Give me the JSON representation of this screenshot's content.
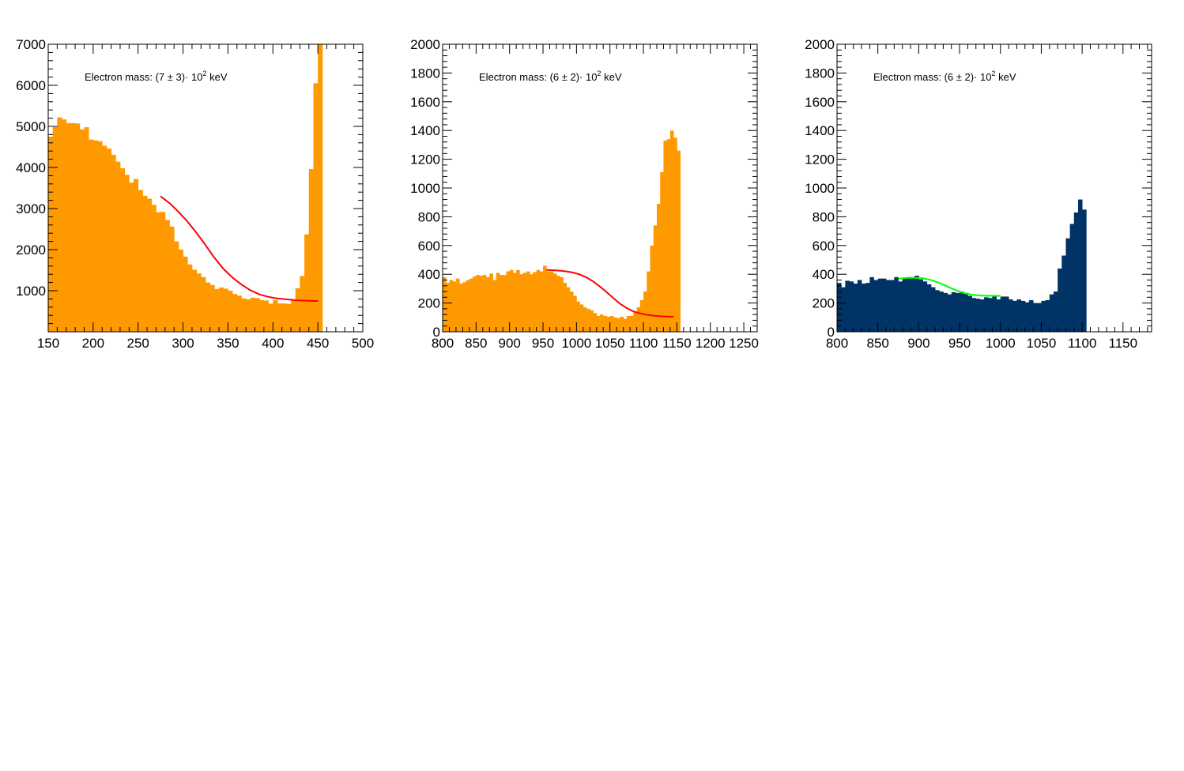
{
  "chart_data": [
    {
      "type": "bar",
      "annotation": {
        "prefix": "Electron mass: (7 ± 3)· 10",
        "sup": "2",
        "suffix": " keV"
      },
      "fill_color": "#ff9900",
      "fit_color": "#ff0000",
      "xlim": [
        150,
        500
      ],
      "ylim": [
        0,
        7000
      ],
      "x_ticks": [
        "150",
        "200",
        "250",
        "300",
        "350",
        "400",
        "450",
        "500"
      ],
      "y_ticks": [
        "1000",
        "2000",
        "3000",
        "4000",
        "5000",
        "6000",
        "7000"
      ],
      "x_tick_values": [
        150,
        200,
        250,
        300,
        350,
        400,
        450,
        500
      ],
      "y_tick_values": [
        1000,
        2000,
        3000,
        4000,
        5000,
        6000,
        7000
      ],
      "bin_start": 150,
      "bin_width": 5,
      "values": [
        4750,
        4980,
        5220,
        5170,
        5080,
        5080,
        5070,
        4930,
        4980,
        4680,
        4660,
        4640,
        4530,
        4460,
        4310,
        4140,
        3980,
        3820,
        3630,
        3720,
        3450,
        3310,
        3240,
        3090,
        2910,
        2920,
        2720,
        2560,
        2200,
        2000,
        1830,
        1640,
        1510,
        1420,
        1330,
        1200,
        1140,
        1040,
        1080,
        1050,
        1000,
        920,
        880,
        810,
        790,
        830,
        820,
        770,
        760,
        680,
        770,
        690,
        690,
        680,
        760,
        1060,
        1360,
        2370,
        3960,
        6050,
        7000
      ],
      "fit": {
        "x": [
          275,
          285,
          295,
          305,
          315,
          325,
          335,
          345,
          355,
          365,
          375,
          385,
          395,
          405,
          415,
          425,
          435,
          445,
          450
        ],
        "y": [
          3300,
          3130,
          2920,
          2680,
          2410,
          2110,
          1800,
          1530,
          1320,
          1150,
          1010,
          910,
          850,
          810,
          790,
          770,
          760,
          750,
          750
        ]
      }
    },
    {
      "type": "bar",
      "annotation": {
        "prefix": "Electron mass: (6 ± 2)· 10",
        "sup": "2",
        "suffix": " keV"
      },
      "fill_color": "#ff9900",
      "fit_color": "#ff0000",
      "xlim": [
        800,
        1270
      ],
      "ylim": [
        0,
        2000
      ],
      "x_ticks": [
        "800",
        "850",
        "900",
        "950",
        "1000",
        "1050",
        "1100",
        "1150",
        "1200",
        "1250"
      ],
      "y_ticks": [
        "0",
        "200",
        "400",
        "600",
        "800",
        "1000",
        "1200",
        "1400",
        "1600",
        "1800",
        "2000"
      ],
      "x_tick_values": [
        800,
        850,
        900,
        950,
        1000,
        1050,
        1100,
        1150,
        1200,
        1250
      ],
      "y_tick_values": [
        0,
        200,
        400,
        600,
        800,
        1000,
        1200,
        1400,
        1600,
        1800,
        2000
      ],
      "bin_start": 800,
      "bin_width": 5,
      "values": [
        380,
        340,
        360,
        350,
        370,
        335,
        345,
        360,
        370,
        385,
        395,
        390,
        395,
        380,
        405,
        360,
        410,
        395,
        395,
        420,
        430,
        410,
        430,
        400,
        410,
        420,
        400,
        415,
        430,
        420,
        460,
        420,
        420,
        405,
        390,
        380,
        340,
        310,
        280,
        250,
        210,
        190,
        170,
        160,
        150,
        130,
        110,
        120,
        110,
        105,
        110,
        100,
        95,
        105,
        90,
        110,
        110,
        140,
        170,
        220,
        280,
        420,
        600,
        740,
        890,
        1110,
        1330,
        1340,
        1400,
        1350,
        1260
      ],
      "fit": {
        "x": [
          955,
          965,
          975,
          985,
          995,
          1005,
          1015,
          1025,
          1035,
          1045,
          1055,
          1065,
          1075,
          1085,
          1095,
          1105,
          1115,
          1125,
          1135,
          1145
        ],
        "y": [
          430,
          428,
          425,
          420,
          412,
          398,
          378,
          350,
          315,
          275,
          235,
          195,
          165,
          142,
          128,
          118,
          112,
          108,
          106,
          105
        ]
      }
    },
    {
      "type": "bar",
      "annotation": {
        "prefix": "Electron mass: (6 ± 2)· 10",
        "sup": "2",
        "suffix": " keV"
      },
      "fill_color": "#003366",
      "fit_color": "#00ff00",
      "xlim": [
        800,
        1185
      ],
      "ylim": [
        0,
        2000
      ],
      "x_ticks": [
        "800",
        "850",
        "900",
        "950",
        "1000",
        "1050",
        "1100",
        "1150"
      ],
      "y_ticks": [
        "0",
        "200",
        "400",
        "600",
        "800",
        "1000",
        "1200",
        "1400",
        "1600",
        "1800",
        "2000"
      ],
      "x_tick_values": [
        800,
        850,
        900,
        950,
        1000,
        1050,
        1100,
        1150
      ],
      "y_tick_values": [
        0,
        200,
        400,
        600,
        800,
        1000,
        1200,
        1400,
        1600,
        1800,
        2000
      ],
      "bin_start": 800,
      "bin_width": 5,
      "values": [
        340,
        310,
        355,
        350,
        335,
        360,
        335,
        340,
        380,
        360,
        370,
        370,
        360,
        360,
        380,
        350,
        370,
        380,
        380,
        390,
        365,
        350,
        330,
        310,
        290,
        280,
        270,
        260,
        275,
        270,
        280,
        270,
        250,
        235,
        230,
        225,
        240,
        235,
        245,
        225,
        245,
        245,
        225,
        215,
        225,
        215,
        205,
        220,
        200,
        200,
        215,
        220,
        260,
        280,
        440,
        530,
        650,
        750,
        830,
        920,
        850
      ],
      "fit": {
        "x": [
          875,
          885,
          895,
          905,
          915,
          925,
          935,
          945,
          955,
          965,
          975,
          985,
          995,
          1000
        ],
        "y": [
          370,
          375,
          376,
          372,
          360,
          340,
          315,
          290,
          270,
          258,
          252,
          250,
          250,
          250
        ]
      }
    }
  ]
}
